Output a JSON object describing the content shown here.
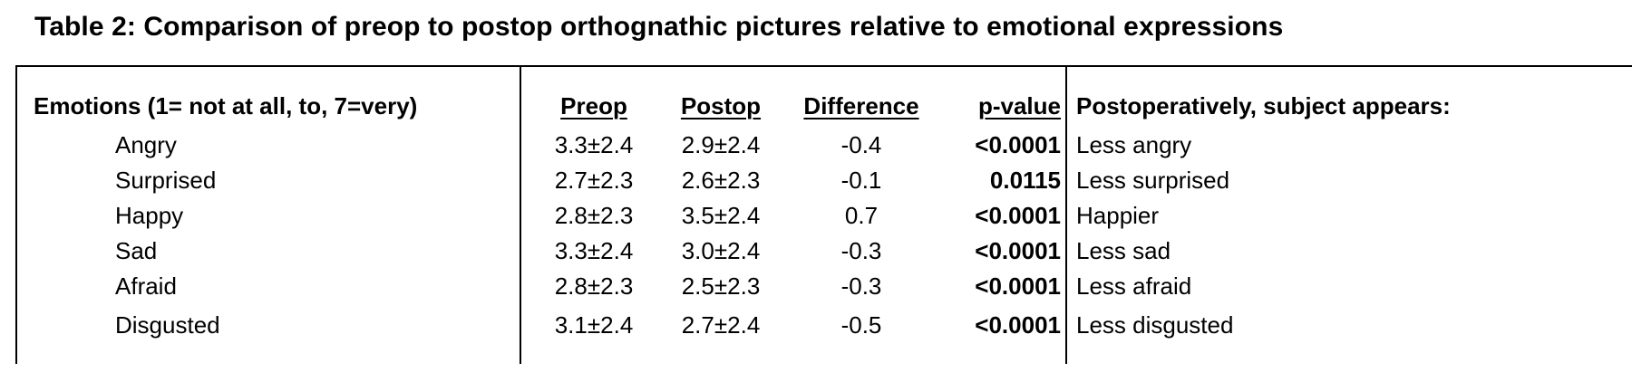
{
  "title": "Table 2: Comparison of preop to postop orthognathic pictures relative to emotional expressions",
  "table": {
    "headers": {
      "emotions": "Emotions (1= not at all, to, 7=very)",
      "preop": "Preop",
      "postop": "Postop",
      "difference": "Difference",
      "p_value": "p-value",
      "description": "Postoperatively, subject appears:"
    },
    "rows": [
      {
        "emotion": "Angry",
        "preop": "3.3±2.4",
        "postop": "2.9±2.4",
        "difference": "-0.4",
        "p_value": "<0.0001",
        "description": "Less angry"
      },
      {
        "emotion": "Surprised",
        "preop": "2.7±2.3",
        "postop": "2.6±2.3",
        "difference": "-0.1",
        "p_value": "0.0115",
        "description": "Less surprised"
      },
      {
        "emotion": "Happy",
        "preop": "2.8±2.3",
        "postop": "3.5±2.4",
        "difference": "0.7",
        "p_value": "<0.0001",
        "description": "Happier"
      },
      {
        "emotion": "Sad",
        "preop": "3.3±2.4",
        "postop": "3.0±2.4",
        "difference": "-0.3",
        "p_value": "<0.0001",
        "description": "Less sad"
      },
      {
        "emotion": "Afraid",
        "preop": "2.8±2.3",
        "postop": "2.5±2.3",
        "difference": "-0.3",
        "p_value": "<0.0001",
        "description": "Less afraid"
      },
      {
        "emotion": "Disgusted",
        "preop": "3.1±2.4",
        "postop": "2.7±2.4",
        "difference": "-0.5",
        "p_value": "<0.0001",
        "description": "Less disgusted"
      }
    ]
  }
}
